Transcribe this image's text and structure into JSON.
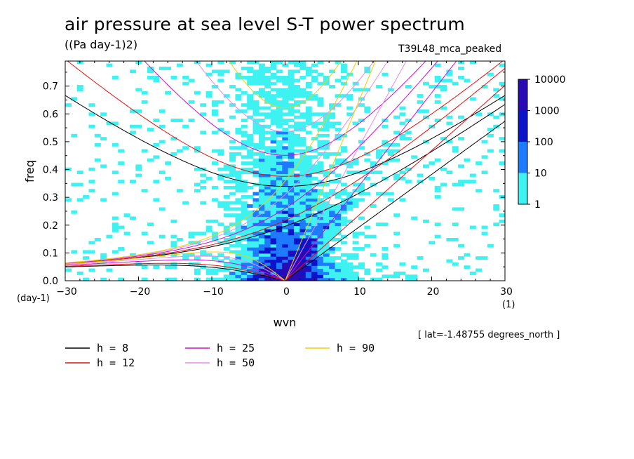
{
  "title": "air pressure at sea level S-T power spectrum",
  "units": "((Pa day-1)2)",
  "dataset": "T39L48_mca_peaked",
  "lat_note": "[ lat=-1.48755 degrees_north ]",
  "chart_data": {
    "type": "heatmap",
    "xlabel": "wvn",
    "ylabel": "freq",
    "x_unit": "(1)",
    "y_unit": "(day-1)",
    "xlim": [
      -30,
      30
    ],
    "ylim": [
      0.0,
      0.79
    ],
    "x_ticks": [
      "-30",
      "-20",
      "-10",
      "0",
      "10",
      "20",
      "30"
    ],
    "y_ticks": [
      "0.0",
      "0.1",
      "0.2",
      "0.3",
      "0.4",
      "0.5",
      "0.6",
      "0.7"
    ],
    "colorbar": {
      "levels": [
        "1",
        "10",
        "100",
        "1000",
        "10000"
      ],
      "colors": [
        "#3ff2f2",
        "#1e7aff",
        "#0a14c8",
        "#2a0ab4"
      ]
    },
    "curves": [
      {
        "name": "h =  8",
        "h": 8,
        "color": "#000000"
      },
      {
        "name": "h = 12",
        "h": 12,
        "color": "#e01010"
      },
      {
        "name": "h = 25",
        "h": 25,
        "color": "#cc10cc"
      },
      {
        "name": "h = 50",
        "h": 50,
        "color": "#e88ee8"
      },
      {
        "name": "h = 90",
        "h": 90,
        "color": "#f0d000"
      }
    ]
  }
}
